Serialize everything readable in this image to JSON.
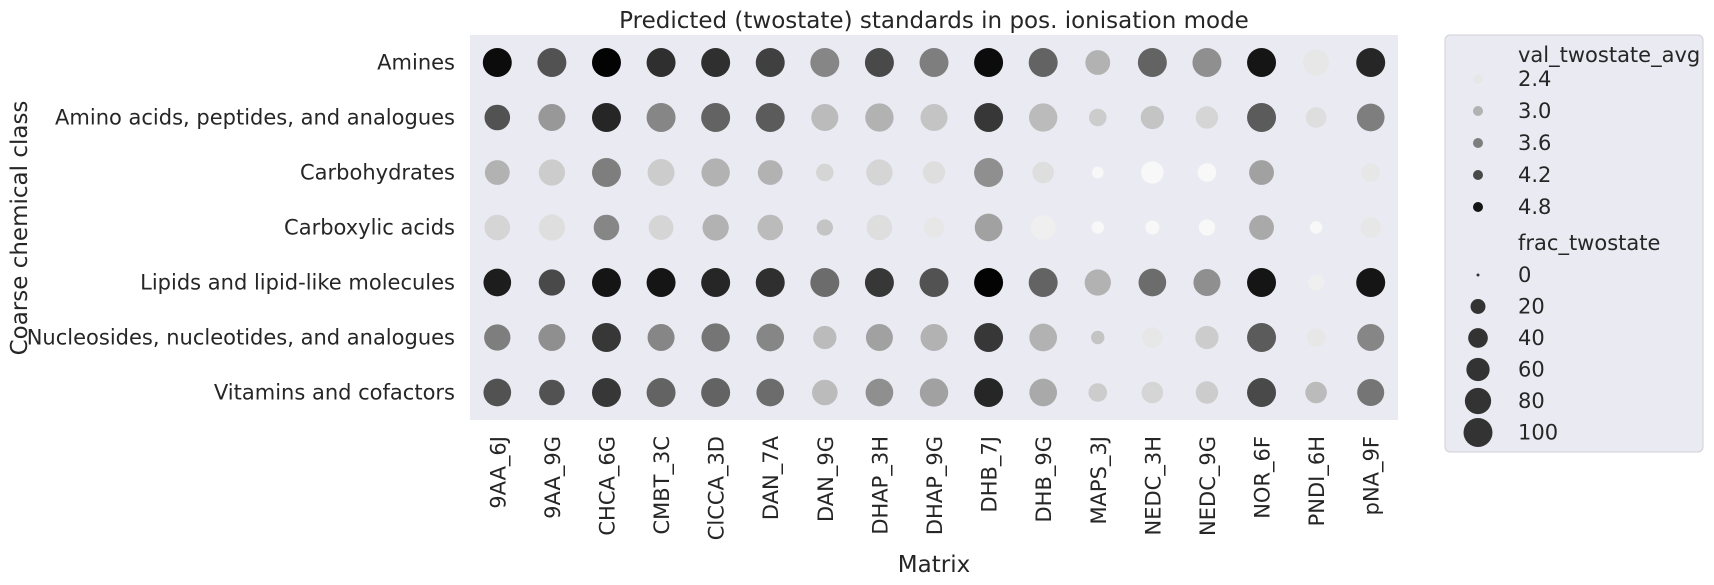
{
  "chart_data": {
    "type": "scatter",
    "title": "Predicted (twostate) standards in pos. ionisation mode",
    "xlabel": "Matrix",
    "ylabel": "Coarse chemical class",
    "x_categories": [
      "9AA_6J",
      "9AA_9G",
      "CHCA_6G",
      "CMBT_3C",
      "ClCCA_3D",
      "DAN_7A",
      "DAN_9G",
      "DHAP_3H",
      "DHAP_9G",
      "DHB_7J",
      "DHB_9G",
      "MAPS_3J",
      "NEDC_3H",
      "NEDC_9G",
      "NOR_6F",
      "PNDI_6H",
      "pNA_9F"
    ],
    "y_categories": [
      "Amines",
      "Amino acids, peptides, and analogues",
      "Carbohydrates",
      "Carboxylic acids",
      "Lipids and lipid-like molecules",
      "Nucleosides, nucleotides, and analogues",
      "Vitamins and cofactors"
    ],
    "hue_variable": "val_twostate_avg",
    "size_variable": "frac_twostate",
    "hue_legend": [
      2.4,
      3.0,
      3.6,
      4.2,
      4.8
    ],
    "size_legend": [
      0,
      20,
      40,
      60,
      80,
      100
    ],
    "background": "#eaeaf2",
    "grid": false,
    "legend_position": "outside-right",
    "series": [
      {
        "y": "Amines",
        "frac": [
          100,
          100,
          100,
          100,
          100,
          100,
          100,
          100,
          100,
          100,
          100,
          70,
          100,
          100,
          100,
          80,
          100
        ],
        "val": [
          4.9,
          4.1,
          5.0,
          4.5,
          4.5,
          4.3,
          3.5,
          4.2,
          3.6,
          4.9,
          3.9,
          3.0,
          3.9,
          3.4,
          4.8,
          2.4,
          4.6
        ]
      },
      {
        "y": "Amino acids, peptides, and analogues",
        "frac": [
          75,
          85,
          100,
          100,
          100,
          100,
          85,
          95,
          85,
          100,
          95,
          30,
          60,
          55,
          100,
          45,
          90
        ],
        "val": [
          4.1,
          3.3,
          4.6,
          3.5,
          3.9,
          4.0,
          2.9,
          3.0,
          2.8,
          4.4,
          2.9,
          2.7,
          2.8,
          2.6,
          4.0,
          2.5,
          3.6
        ]
      },
      {
        "y": "Carbohydrates",
        "frac": [
          70,
          80,
          100,
          85,
          95,
          70,
          30,
          80,
          55,
          100,
          50,
          10,
          55,
          35,
          70,
          0,
          35
        ],
        "val": [
          3.0,
          2.7,
          3.6,
          2.7,
          3.0,
          3.0,
          2.6,
          2.6,
          2.5,
          3.4,
          2.5,
          2.2,
          2.2,
          2.2,
          3.2,
          2.4,
          2.4
        ]
      },
      {
        "y": "Carboxylic acids",
        "frac": [
          75,
          80,
          75,
          70,
          80,
          75,
          25,
          75,
          45,
          90,
          70,
          12,
          17,
          25,
          70,
          12,
          45
        ],
        "val": [
          2.6,
          2.5,
          3.5,
          2.6,
          3.0,
          2.9,
          2.8,
          2.5,
          2.4,
          3.2,
          2.3,
          2.2,
          2.2,
          2.2,
          3.1,
          2.2,
          2.4
        ]
      },
      {
        "y": "Lipids and lipid-like molecules",
        "frac": [
          90,
          80,
          100,
          100,
          100,
          100,
          100,
          100,
          100,
          100,
          100,
          80,
          90,
          85,
          100,
          25,
          100
        ],
        "val": [
          4.7,
          4.2,
          4.8,
          4.8,
          4.6,
          4.5,
          3.8,
          4.4,
          4.1,
          5.0,
          3.9,
          3.0,
          3.8,
          3.4,
          4.8,
          2.3,
          4.8
        ]
      },
      {
        "y": "Nucleosides, nucleotides, and analogues",
        "frac": [
          80,
          85,
          100,
          85,
          95,
          90,
          60,
          85,
          85,
          100,
          90,
          15,
          45,
          60,
          100,
          35,
          85
        ],
        "val": [
          3.6,
          3.4,
          4.4,
          3.5,
          3.7,
          3.5,
          2.9,
          3.2,
          3.0,
          4.4,
          3.0,
          2.8,
          2.4,
          2.7,
          4.0,
          2.4,
          3.5
        ]
      },
      {
        "y": "Vitamins and cofactors",
        "frac": [
          90,
          75,
          100,
          100,
          100,
          90,
          75,
          90,
          95,
          100,
          90,
          35,
          50,
          55,
          100,
          50,
          85
        ],
        "val": [
          4.1,
          4.1,
          4.4,
          3.9,
          3.9,
          3.8,
          2.9,
          3.4,
          3.2,
          4.6,
          3.1,
          2.7,
          2.6,
          2.7,
          4.2,
          2.9,
          3.7
        ]
      }
    ]
  }
}
